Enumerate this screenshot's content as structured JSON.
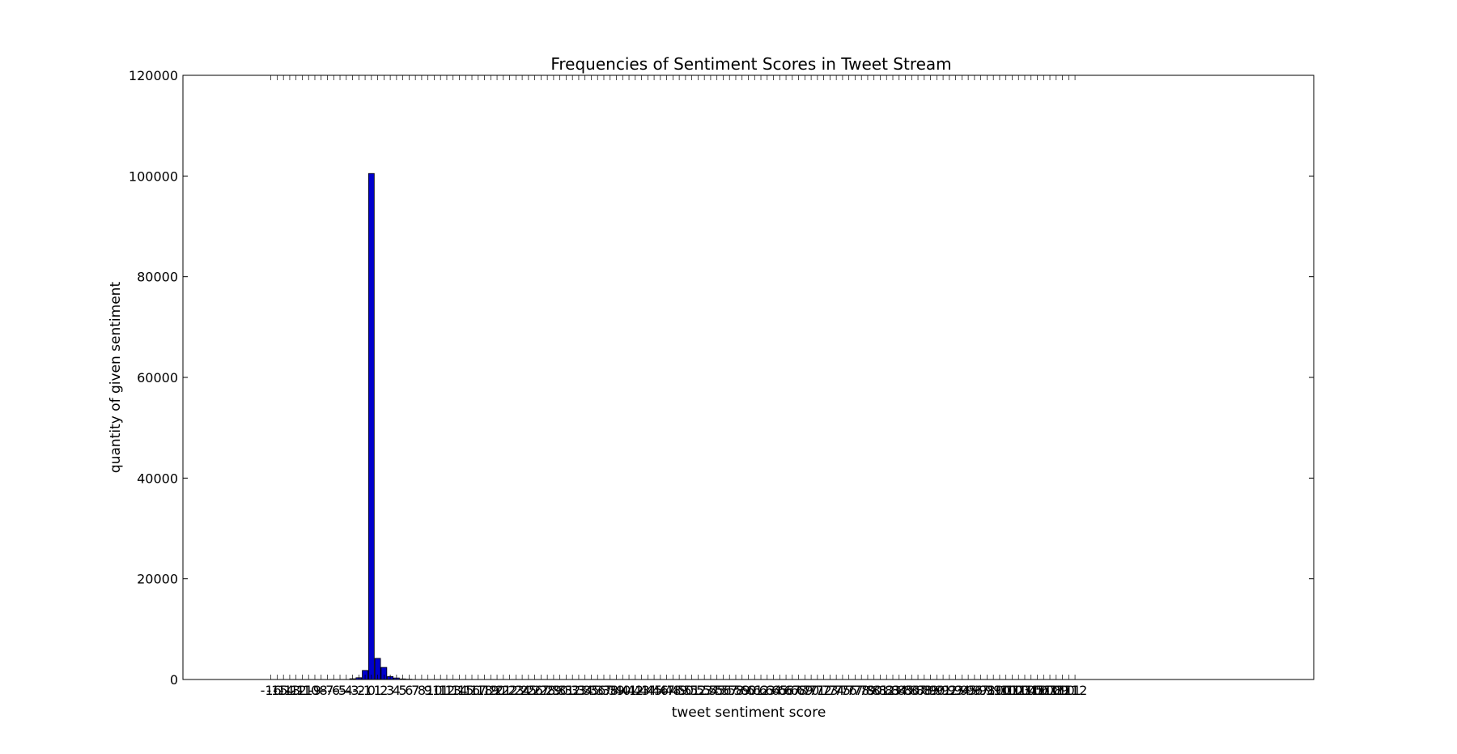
{
  "chart_data": {
    "type": "bar",
    "title": "Frequencies of Sentiment Scores in Tweet Stream",
    "xlabel": "tweet sentiment score",
    "ylabel": "quantity of given sentiment",
    "ylim": [
      0,
      120000
    ],
    "yticks": [
      0,
      20000,
      40000,
      60000,
      80000,
      100000,
      120000
    ],
    "xlim": [
      -30,
      150
    ],
    "x_start": -16,
    "x_end": 112,
    "bars": [
      {
        "x": -3,
        "value": 150
      },
      {
        "x": -2,
        "value": 350
      },
      {
        "x": -1,
        "value": 1800
      },
      {
        "x": 0,
        "value": 100500
      },
      {
        "x": 1,
        "value": 4200
      },
      {
        "x": 2,
        "value": 2400
      },
      {
        "x": 3,
        "value": 600
      },
      {
        "x": 4,
        "value": 300
      },
      {
        "x": 5,
        "value": 120
      },
      {
        "x": 6,
        "value": 60
      }
    ],
    "grid": false,
    "bar_color": "#0000cc",
    "edge_color": "#000000"
  }
}
